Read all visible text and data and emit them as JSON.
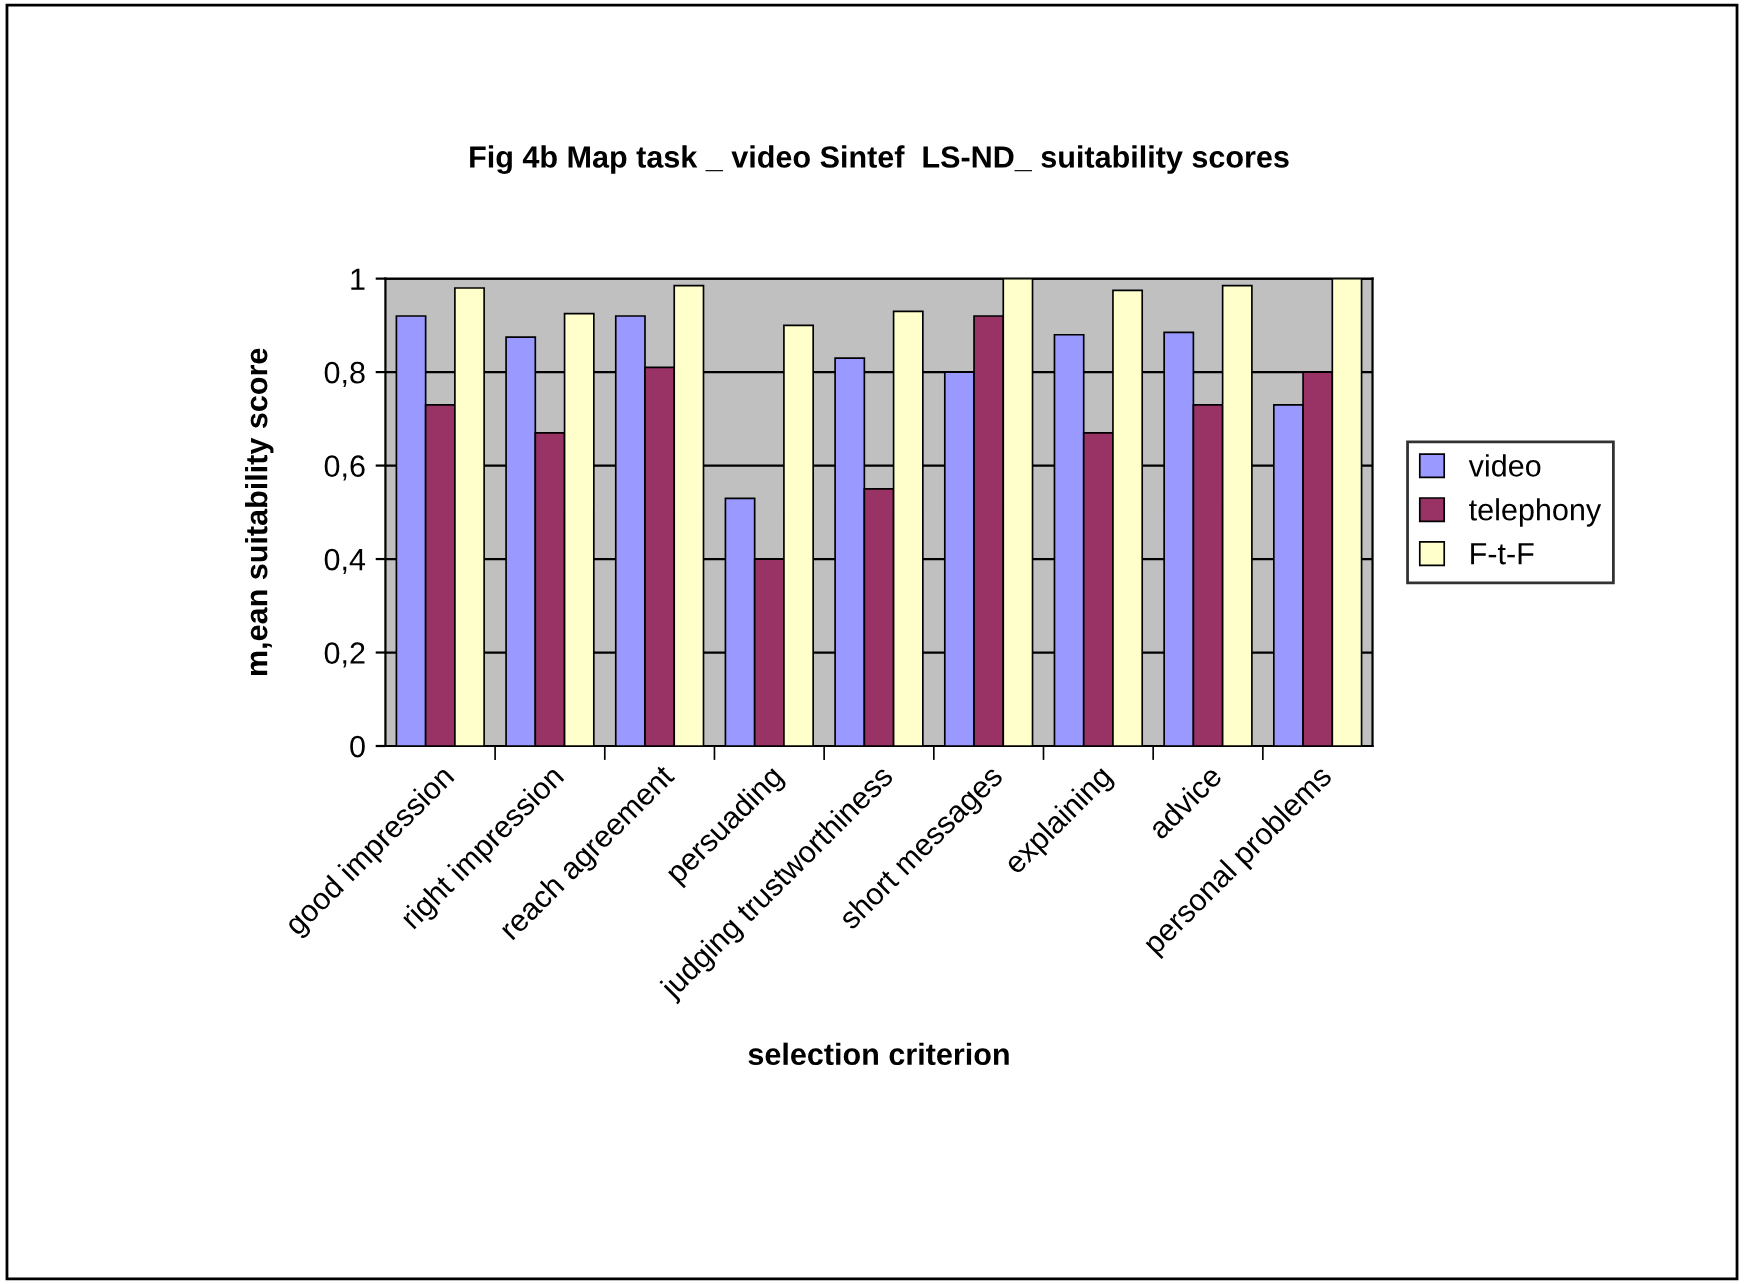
{
  "chart_data": {
    "type": "bar",
    "title": "Fig 4b Map task _ video Sintef  LS-ND_ suitability scores",
    "xlabel": "selection criterion",
    "ylabel": "m,ean suitability score",
    "categories": [
      "good impression",
      "right impression",
      "reach agreement",
      "persuading",
      "judging trustworthiness",
      "short messages",
      "explaining",
      "advice",
      "personal problems"
    ],
    "series": [
      {
        "name": "video",
        "color": "#9999ff",
        "values": [
          0.92,
          0.875,
          0.92,
          0.53,
          0.83,
          0.8,
          0.88,
          0.885,
          0.73
        ]
      },
      {
        "name": "telephony",
        "color": "#993366",
        "values": [
          0.73,
          0.67,
          0.81,
          0.4,
          0.55,
          0.92,
          0.67,
          0.73,
          0.8
        ]
      },
      {
        "name": "F-t-F",
        "color": "#ffffcc",
        "values": [
          0.98,
          0.925,
          0.985,
          0.9,
          0.93,
          1.0,
          0.975,
          0.985,
          1.0
        ]
      }
    ],
    "ylim": [
      0,
      1
    ],
    "yticks": [
      {
        "value": 0,
        "label": "0"
      },
      {
        "value": 0.2,
        "label": "0,2"
      },
      {
        "value": 0.4,
        "label": "0,4"
      },
      {
        "value": 0.6,
        "label": "0,6"
      },
      {
        "value": 0.8,
        "label": "0,8"
      },
      {
        "value": 1,
        "label": "1"
      }
    ],
    "grid": "y",
    "legend": "right"
  }
}
